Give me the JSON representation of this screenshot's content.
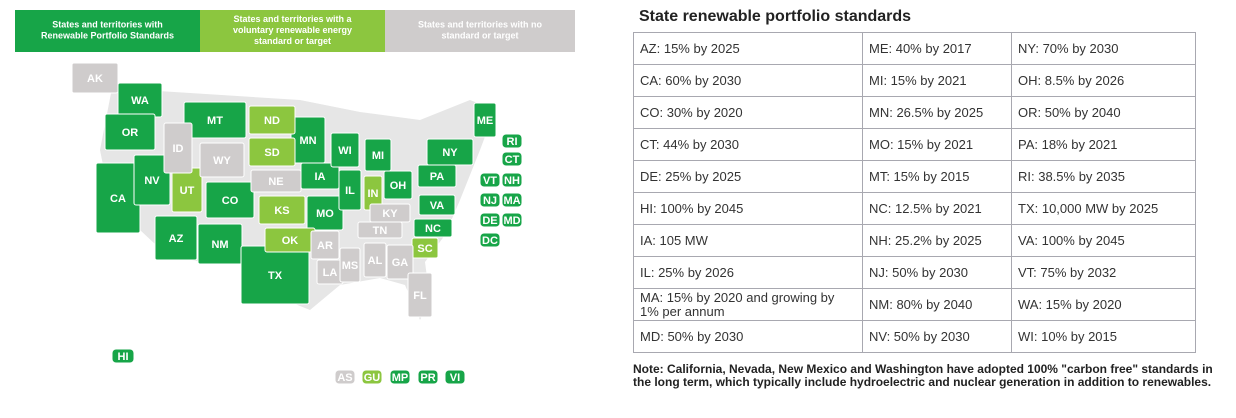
{
  "legend": [
    {
      "label": "States and territories with Renewable Portfolio Standards",
      "color": "#17a548",
      "states": [
        "WA",
        "OR",
        "CA",
        "NV",
        "AZ",
        "MT",
        "CO",
        "NM",
        "TX",
        "MN",
        "IA",
        "MO",
        "WI",
        "IL",
        "MI",
        "OH",
        "NY",
        "PA",
        "VA",
        "NC",
        "ME",
        "RI",
        "CT",
        "VT",
        "NH",
        "NJ",
        "MA",
        "DE",
        "MD",
        "DC",
        "HI",
        "MP",
        "PR",
        "VI"
      ]
    },
    {
      "label": "States and territories with a voluntary renewable energy standard or target",
      "color": "#8cc63f",
      "states": [
        "ND",
        "SD",
        "UT",
        "KS",
        "OK",
        "IN",
        "SC",
        "GU"
      ]
    },
    {
      "label": "States and territories with no standard or target",
      "color": "#cfcccc",
      "states": [
        "AK",
        "ID",
        "WY",
        "NE",
        "KY",
        "TN",
        "AR",
        "LA",
        "MS",
        "AL",
        "GA",
        "FL",
        "AS"
      ]
    }
  ],
  "table": {
    "title": "State renewable portfolio standards",
    "rows": [
      [
        "AZ: 15% by 2025",
        "ME: 40% by 2017",
        "NY: 70% by 2030"
      ],
      [
        "CA: 60% by 2030",
        "MI: 15% by 2021",
        "OH: 8.5% by 2026"
      ],
      [
        "CO: 30% by 2020",
        "MN: 26.5% by 2025",
        "OR: 50% by 2040"
      ],
      [
        "CT: 44% by 2030",
        "MO: 15% by 2021",
        "PA: 18% by 2021"
      ],
      [
        "DE: 25% by 2025",
        "MT: 15% by 2015",
        "RI: 38.5% by 2035"
      ],
      [
        "HI: 100% by 2045",
        "NC: 12.5% by 2021",
        "TX: 10,000 MW by 2025"
      ],
      [
        "IA: 105 MW",
        "NH: 25.2% by 2025",
        "VA: 100% by 2045"
      ],
      [
        "IL: 25% by 2026",
        "NJ: 50% by 2030",
        "VT: 75% by 2032"
      ],
      [
        "MA: 15% by 2020 and growing by 1% per annum",
        "NM: 80% by 2040",
        "WA: 15% by 2020"
      ],
      [
        "MD: 50% by 2030",
        "NV: 50% by 2030",
        "WI: 10% by 2015"
      ]
    ],
    "note": "Note: California, Nevada, New Mexico and Washington have adopted 100% \"carbon free\" standards in the long term, which typically include hydroelectric and nuclear generation in addition to renewables."
  }
}
